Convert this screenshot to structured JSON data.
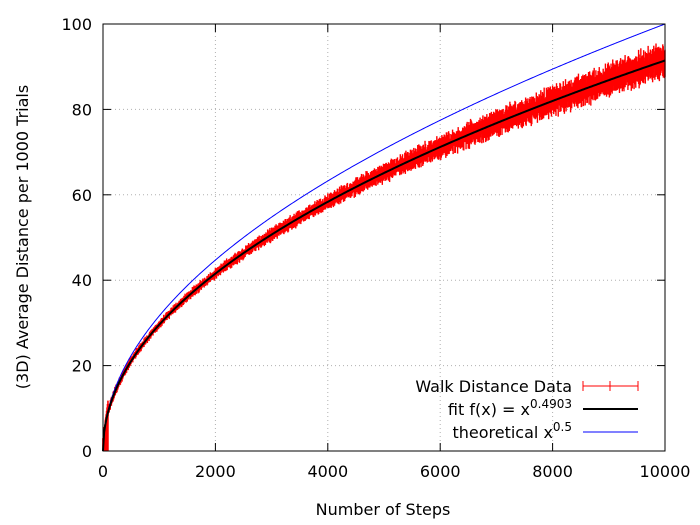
{
  "chart_data": {
    "type": "line",
    "xlabel": "Number of Steps",
    "ylabel": "(3D) Average Distance per 1000 Trials",
    "xlim": [
      0,
      10000
    ],
    "ylim": [
      0,
      100
    ],
    "x_ticks": [
      0,
      2000,
      4000,
      6000,
      8000,
      10000
    ],
    "y_ticks": [
      0,
      20,
      40,
      60,
      80,
      100
    ],
    "grid": true,
    "legend_position": "bottom-right",
    "series": [
      {
        "name": "Walk Distance Data",
        "color": "#ff0000",
        "style": "points with error bars",
        "x_step": 10,
        "x_max": 10000,
        "y_center_exponent": 0.4903,
        "samples": [
          {
            "x": 0,
            "y": 2
          },
          {
            "x": 1000,
            "y": 29.5
          },
          {
            "x": 2000,
            "y": 41.5
          },
          {
            "x": 4000,
            "y": 58.5
          },
          {
            "x": 6000,
            "y": 71.5
          },
          {
            "x": 8000,
            "y": 82.5
          },
          {
            "x": 10000,
            "y": 91.5
          }
        ],
        "error_half_width": [
          {
            "x": 0,
            "e": 1
          },
          {
            "x": 1000,
            "e": 0.8
          },
          {
            "x": 4000,
            "e": 1.5
          },
          {
            "x": 6000,
            "e": 2.2
          },
          {
            "x": 10000,
            "e": 3.5
          }
        ]
      },
      {
        "name": "fit f(x) = x",
        "exponent_label": "0.4903",
        "exponent": 0.4903,
        "color": "#000000",
        "style": "line"
      },
      {
        "name": "theoretical x",
        "exponent_label": "0.5",
        "exponent": 0.5,
        "color": "#0000ff",
        "style": "line"
      }
    ]
  }
}
